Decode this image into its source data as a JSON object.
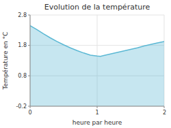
{
  "chart_data": {
    "type": "area",
    "title": "Evolution de la température",
    "x_label": "heure par heure",
    "y_label": "Température en °C",
    "x": [
      0,
      0.1,
      0.2,
      0.3,
      0.4,
      0.5,
      0.6,
      0.7,
      0.8,
      0.9,
      1.0,
      1.05,
      1.1,
      1.2,
      1.3,
      1.4,
      1.5,
      1.6,
      1.7,
      1.8,
      1.9,
      2.0
    ],
    "values": [
      2.45,
      2.32,
      2.18,
      2.05,
      1.93,
      1.82,
      1.72,
      1.63,
      1.55,
      1.48,
      1.45,
      1.44,
      1.47,
      1.52,
      1.57,
      1.62,
      1.67,
      1.72,
      1.78,
      1.83,
      1.88,
      1.93
    ],
    "color": "#5bb8d4",
    "xlim": [
      0,
      2
    ],
    "ylim": [
      -0.2,
      2.8
    ],
    "xticks": [
      0,
      1,
      2
    ],
    "yticks": [
      -0.2,
      0.8,
      1.8,
      2.8
    ],
    "grid": true
  }
}
